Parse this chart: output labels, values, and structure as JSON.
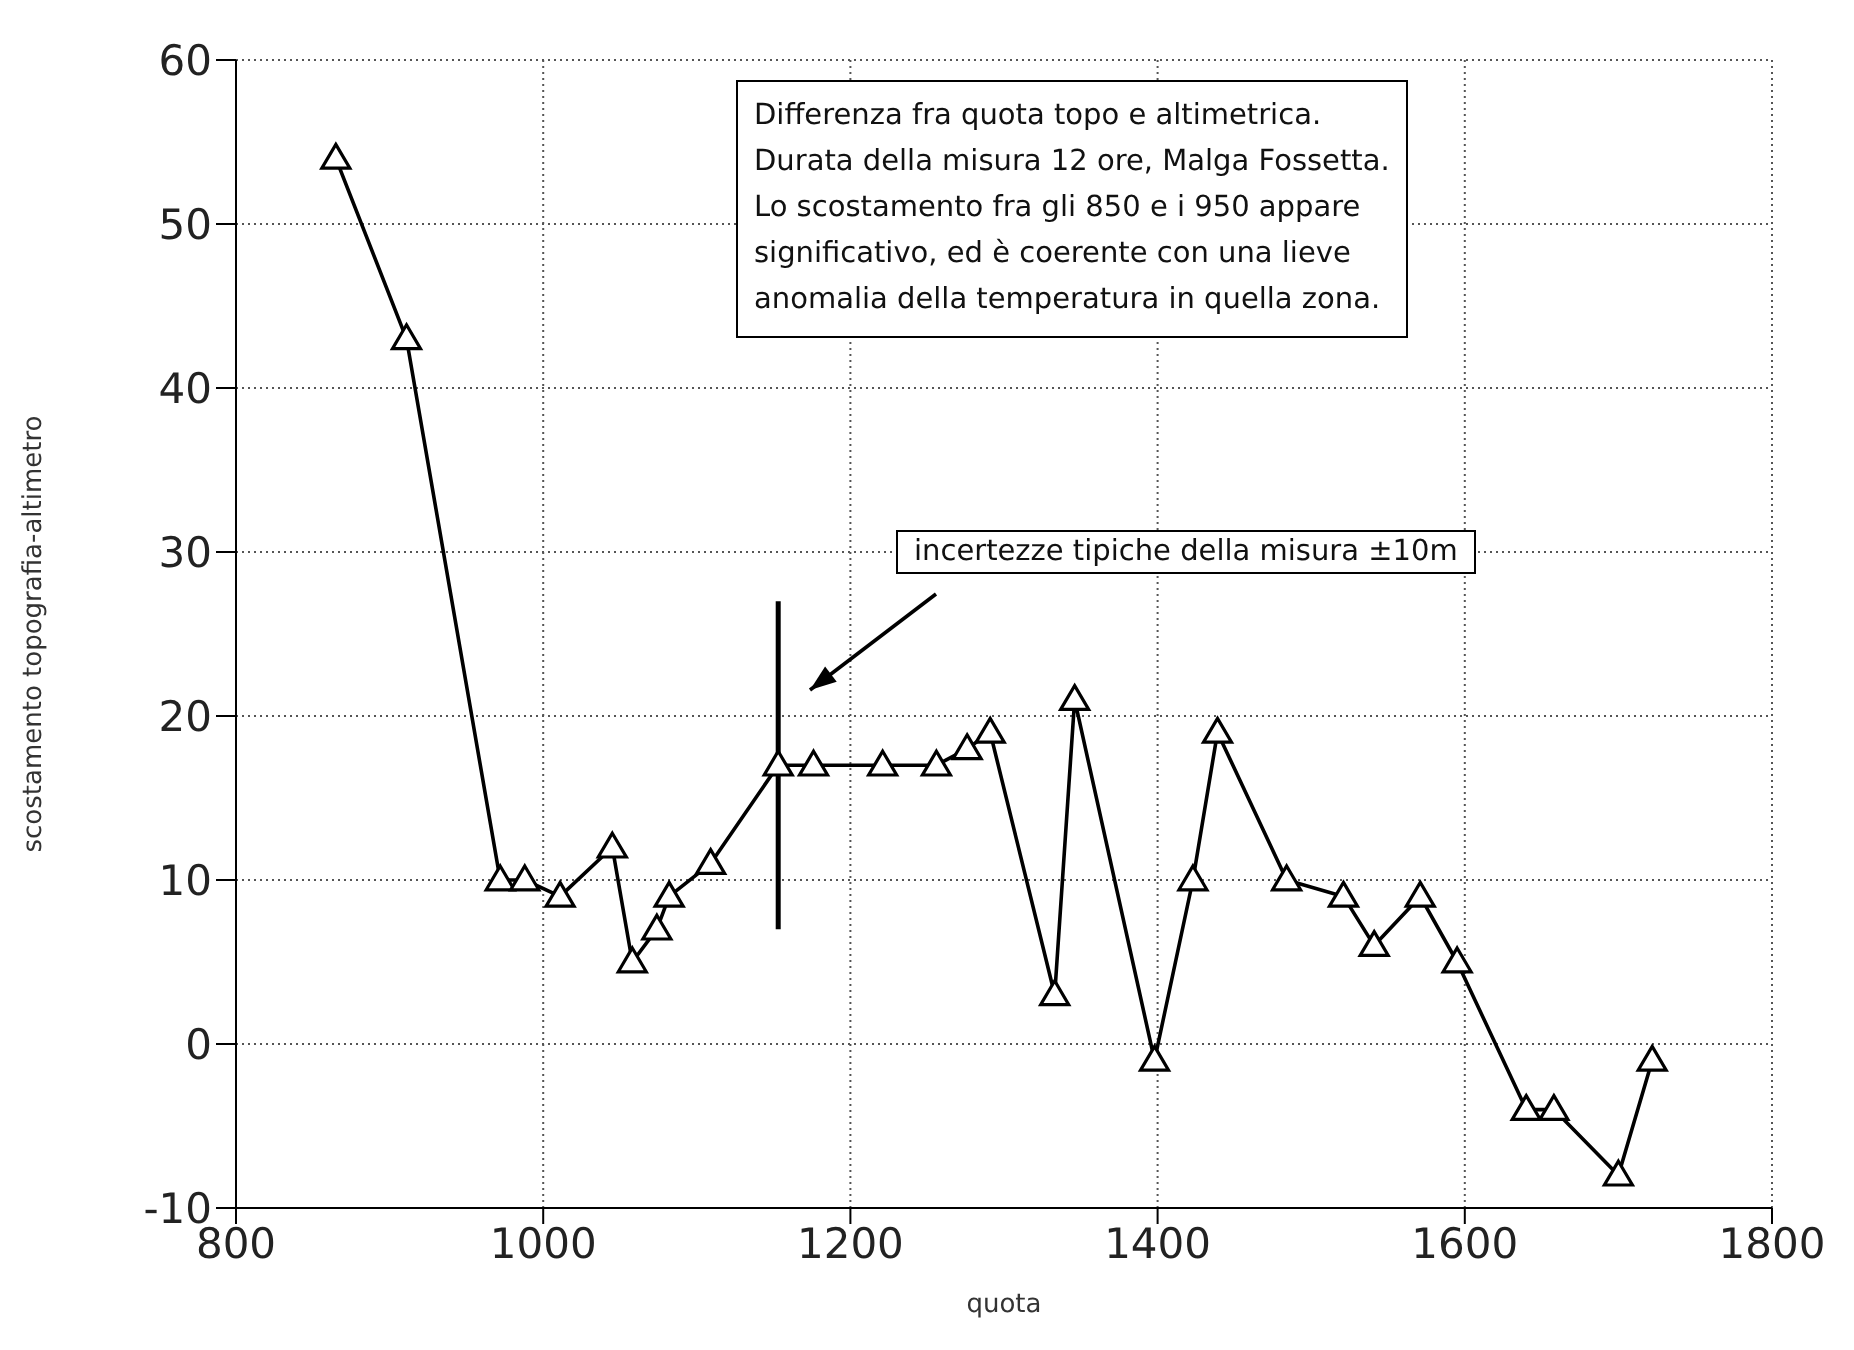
{
  "chart_data": {
    "type": "line",
    "xlabel": "quota",
    "ylabel": "scostamento topografia-altimetro",
    "x": [
      865,
      911,
      972,
      988,
      1011,
      1045,
      1058,
      1074,
      1082,
      1109,
      1153,
      1176,
      1221,
      1256,
      1276,
      1291,
      1333,
      1346,
      1398,
      1423,
      1439,
      1484,
      1521,
      1541,
      1571,
      1595,
      1640,
      1658,
      1700,
      1722
    ],
    "series": [
      {
        "color": "#000000",
        "values": [
          54,
          43,
          10,
          10,
          9,
          12,
          5,
          7,
          9,
          11,
          17,
          17,
          17,
          17,
          18,
          19,
          3,
          21,
          -1,
          10,
          19,
          10,
          9,
          6,
          9,
          5,
          -4,
          -4,
          -8,
          -1
        ],
        "errors": [
          null,
          null,
          null,
          null,
          null,
          null,
          null,
          null,
          null,
          null,
          10,
          null,
          null,
          null,
          null,
          null,
          null,
          null,
          null,
          null,
          null,
          null,
          null,
          null,
          null,
          null,
          null,
          null,
          null,
          null
        ]
      }
    ],
    "xlim": [
      800,
      1800
    ],
    "xticks": [
      800,
      1000,
      1200,
      1400,
      1600,
      1800
    ],
    "ylim": [
      -10,
      60
    ],
    "yticks": [
      -10,
      0,
      10,
      20,
      30,
      40,
      50,
      60
    ],
    "grid": true,
    "marker": "triangle",
    "line_style": "solid",
    "legend": false,
    "annotations": [
      "Differenza fra quota topo e altimetrica.\nDurata della misura 12 ore, Malga Fossetta.\nLo scostamento fra gli 850 e i 950 appare\nsignificativo, ed è coerente con una lieve\nanomalia della temperatura in quella zona.",
      "incertezze tipiche della misura ±10m"
    ]
  }
}
